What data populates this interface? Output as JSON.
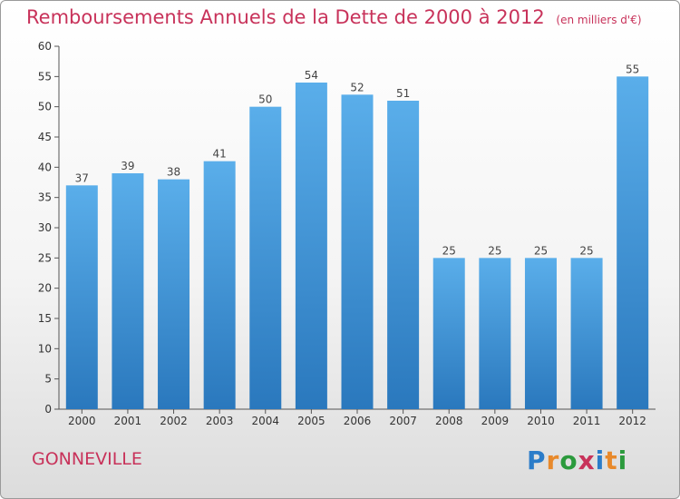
{
  "header": {
    "title": "Remboursements Annuels de la Dette de 2000 à 2012",
    "unit": "(en milliers d'€)"
  },
  "footer": {
    "city": "GONNEVILLE",
    "logo": "Proxiti",
    "logo_letters": [
      "P",
      "r",
      "o",
      "x",
      "i",
      "t",
      "i"
    ]
  },
  "colors": {
    "title": "#c8325a",
    "bar_light": "#5aaeea",
    "bar_dark": "#2a78bd"
  },
  "chart_data": {
    "type": "bar",
    "title": "Remboursements Annuels de la Dette de 2000 à 2012",
    "xlabel": "",
    "ylabel": "",
    "categories": [
      "2000",
      "2001",
      "2002",
      "2003",
      "2004",
      "2005",
      "2006",
      "2007",
      "2008",
      "2009",
      "2010",
      "2011",
      "2012"
    ],
    "values": [
      37,
      39,
      38,
      41,
      50,
      54,
      52,
      51,
      25,
      25,
      25,
      25,
      55
    ],
    "ylim": [
      0,
      60
    ],
    "yticks": [
      0,
      5,
      10,
      15,
      20,
      25,
      30,
      35,
      40,
      45,
      50,
      55,
      60
    ],
    "grid": false,
    "legend": "none"
  }
}
